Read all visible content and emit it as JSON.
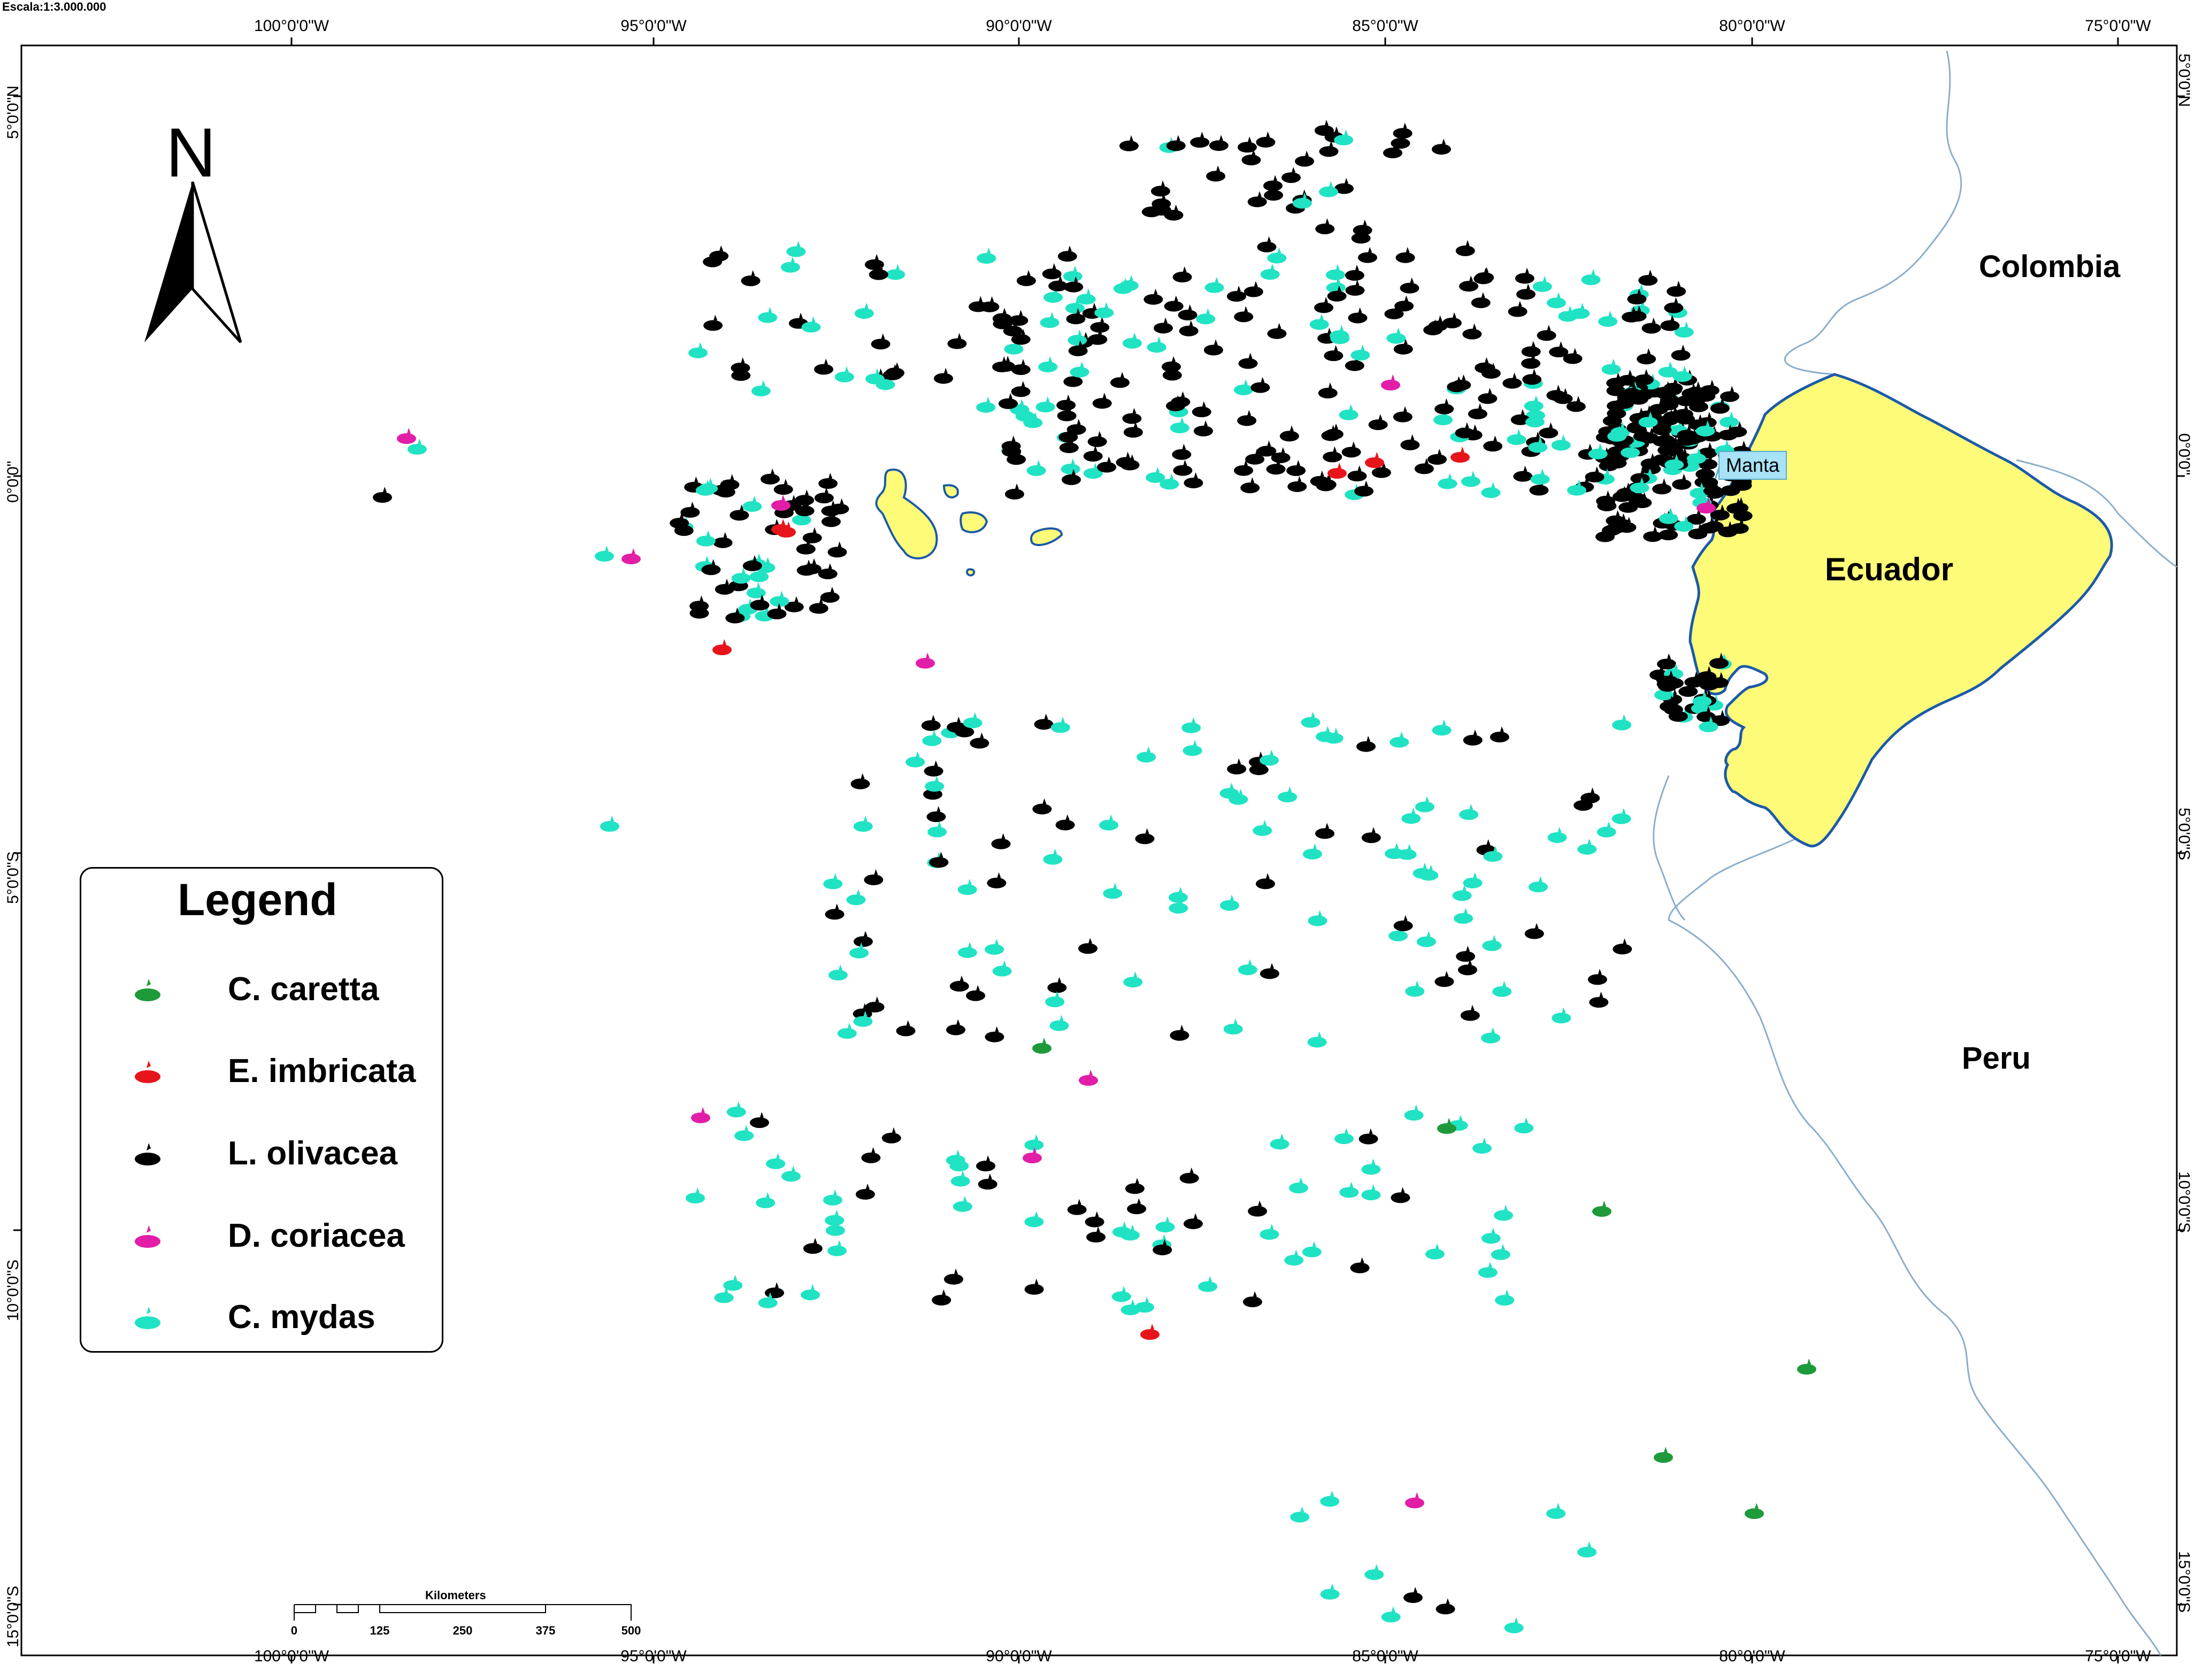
{
  "scale_text": "Escala:1:3.000.000",
  "north_letter": "N",
  "axes": {
    "top_ticks": [
      "100°0'0\"W",
      "95°0'0\"W",
      "90°0'0\"W",
      "85°0'0\"W",
      "80°0'0\"W",
      "75°0'0\"W"
    ],
    "bottom_ticks": [
      "100°0'0\"W",
      "95°0'0\"W",
      "90°0'0\"W",
      "85°0'0\"W",
      "80°0'0\"W",
      "75°0'0\"W"
    ],
    "left_ticks": [
      "5°0'0\"N",
      "0°0'0\"",
      "5°0'0\"S",
      "10°0'0\"S",
      "15°0'0\"S"
    ],
    "right_ticks": [
      "5°0'0\"N",
      "0°0'0\"",
      "5°0'0\"S",
      "10°0'0\"S",
      "15°0'0\"S"
    ]
  },
  "countries": {
    "colombia": "Colombia",
    "ecuador": "Ecuador",
    "peru": "Peru"
  },
  "places": {
    "manta": "Manta"
  },
  "legend": {
    "title": "Legend",
    "items": [
      {
        "label": "C. caretta",
        "color": "#1e9a3a",
        "icon": "turtle-icon"
      },
      {
        "label": "E. imbricata",
        "color": "#e8141b",
        "icon": "turtle-icon"
      },
      {
        "label": "L. olivacea",
        "color": "#000000",
        "icon": "turtle-icon"
      },
      {
        "label": "D. coriacea",
        "color": "#e21ea8",
        "icon": "turtle-icon"
      },
      {
        "label": "C. mydas",
        "color": "#20e3c4",
        "icon": "turtle-icon"
      }
    ]
  },
  "scalebar": {
    "units": "Kilometers",
    "labels": [
      "0",
      "125",
      "250",
      "375",
      "500"
    ]
  },
  "colors": {
    "land": "#fdfb78",
    "coast": "#1c5aa8",
    "border": "#8aaecb"
  }
}
